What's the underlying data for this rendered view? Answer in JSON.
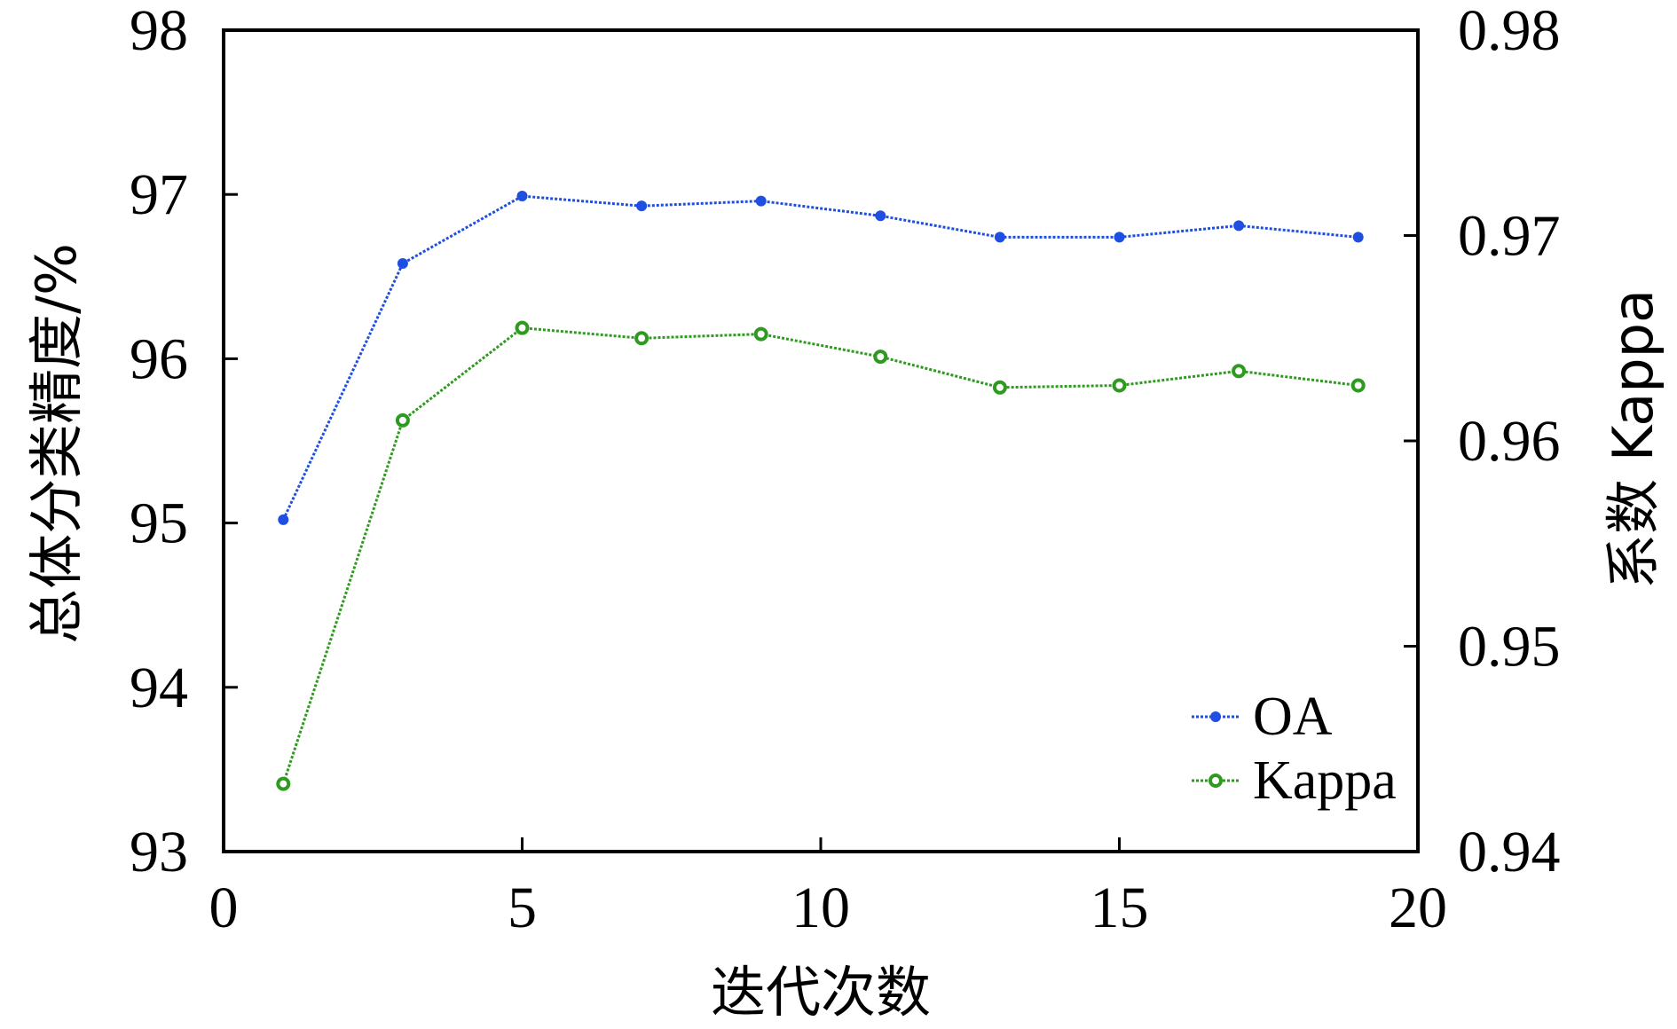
{
  "chart_data": {
    "type": "line",
    "xlabel": "迭代次数",
    "ylabel_left": "总体分类精度/%",
    "ylabel_right": "系数 Kappa",
    "xlim": [
      0,
      20
    ],
    "ylim_left": [
      93,
      98
    ],
    "ylim_right": [
      0.94,
      0.98
    ],
    "x_ticks": [
      "0",
      "5",
      "10",
      "15",
      "20"
    ],
    "y_left_ticks": [
      "93",
      "94",
      "95",
      "96",
      "97",
      "98"
    ],
    "y_right_ticks": [
      "0.94",
      "0.95",
      "0.96",
      "0.97",
      "0.98"
    ],
    "series": [
      {
        "name": "OA",
        "axis": "left",
        "color": "#1f4fe0",
        "marker": "filled-circle",
        "x": [
          1,
          3,
          5,
          7,
          9,
          11,
          13,
          15,
          17,
          19
        ],
        "values": [
          95.02,
          96.58,
          96.99,
          96.93,
          96.96,
          96.87,
          96.74,
          96.74,
          96.81,
          96.74
        ]
      },
      {
        "name": "Kappa",
        "axis": "right",
        "color": "#2e9a1f",
        "marker": "ring",
        "x": [
          1,
          3,
          5,
          7,
          9,
          11,
          13,
          15,
          17,
          19
        ],
        "values": [
          0.9433,
          0.961,
          0.9655,
          0.965,
          0.9652,
          0.9641,
          0.9626,
          0.9627,
          0.9634,
          0.9627
        ]
      }
    ],
    "legend": {
      "placement": "bottom-right",
      "entries": [
        "OA",
        "Kappa"
      ]
    }
  }
}
